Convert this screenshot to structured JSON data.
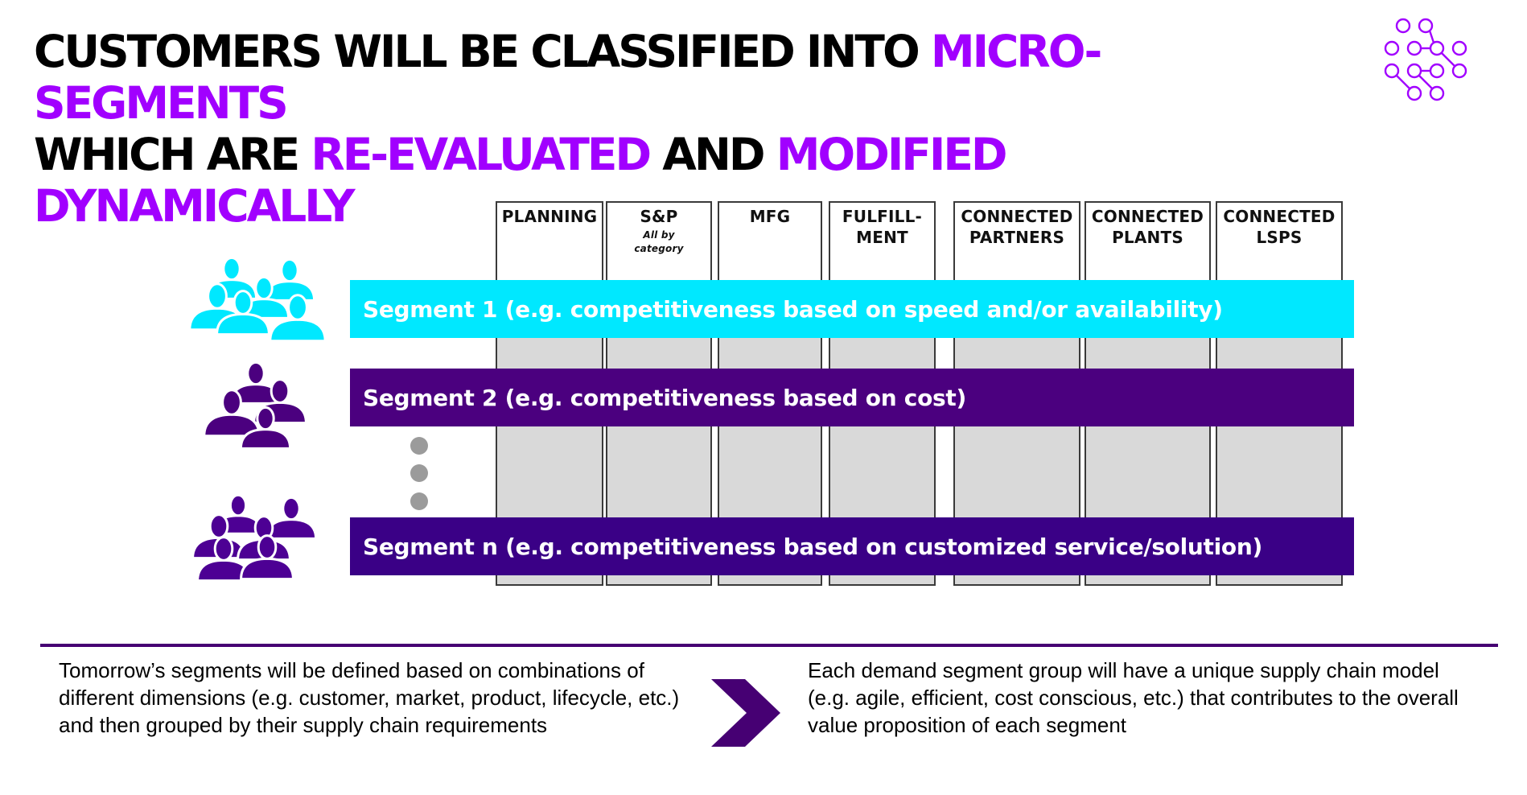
{
  "title": {
    "line1_plain": "Customers will be classified into ",
    "line1_highlight": "micro-segments",
    "line2_plain1": "which are ",
    "line2_highlight1": "re-evaluated",
    "line2_plain2": " and ",
    "line2_highlight2": "modified dynamically"
  },
  "columns": [
    {
      "label": "PLANNING",
      "sub": ""
    },
    {
      "label": "S&P",
      "sub": "All by category"
    },
    {
      "label": "MFG",
      "sub": ""
    },
    {
      "label": "FULFILL-\nMENT",
      "sub": ""
    },
    {
      "label": "CONNECTED\nPARTNERS",
      "sub": ""
    },
    {
      "label": "CONNECTED\nPLANTS",
      "sub": ""
    },
    {
      "label": "CONNECTED\nLSPS",
      "sub": ""
    }
  ],
  "segments": [
    {
      "label": "Segment 1 (e.g. competitiveness based on speed and/or availability)",
      "color": "#00e8ff",
      "icon": "people-group-icon",
      "icon_color": "#00e8ff"
    },
    {
      "label": "Segment 2 (e.g. competitiveness based on cost)",
      "color": "#4b007f",
      "icon": "people-group-icon",
      "icon_color": "#4b007f"
    },
    {
      "label": "Segment n (e.g. competitiveness based on customized service/solution)",
      "color": "#3a0086",
      "icon": "people-group-icon",
      "icon_color": "#4d0094"
    }
  ],
  "bottom": {
    "left_text": "Tomorrow’s segments will be defined based on combinations of different dimensions (e.g. customer, market, product, lifecycle, etc.) and then grouped by their supply chain requirements",
    "right_text": "Each demand segment group will have a unique supply chain model (e.g. agile, efficient, cost conscious, etc.) that contributes to the overall value proposition of each segment",
    "arrow_icon": "chevron-right-icon",
    "divider_color": "#460073"
  },
  "colors": {
    "accent": "#a100ff",
    "column_fill": "#d9d9d9"
  },
  "logo_icon": "circuit-dots-icon"
}
